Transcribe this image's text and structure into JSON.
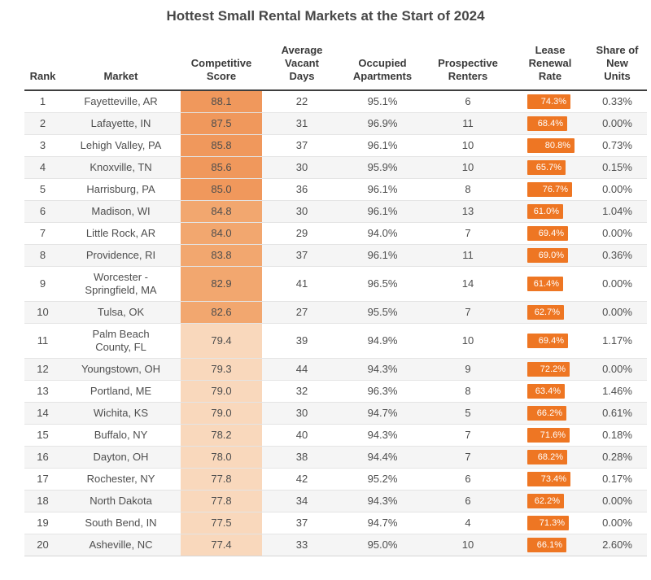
{
  "colors": {
    "badge": "#EE7623",
    "score_high": "#F0985C",
    "score_mid": "#F2A76F",
    "score_low": "#F9D8BC",
    "row_alt": "#F5F5F5",
    "header_border": "#3E3E3E",
    "title_text": "#474747",
    "body_text": "#4E4E4E"
  },
  "chart_data": {
    "type": "table",
    "title": "Hottest Small Rental Markets at the Start of 2024",
    "columns": [
      {
        "label": "Rank"
      },
      {
        "label": "Market"
      },
      {
        "label": "Competitive\nScore"
      },
      {
        "label": "Average\nVacant\nDays"
      },
      {
        "label": "Occupied\nApartments"
      },
      {
        "label": "Prospective\nRenters"
      },
      {
        "label": "Lease\nRenewal\nRate"
      },
      {
        "label": "Share of\nNew\nUnits"
      }
    ],
    "rows": [
      {
        "rank": 1,
        "market": "Fayetteville, AR",
        "score": "88.1",
        "score_bg": "#F0985C",
        "vacant_days": 22,
        "occupied": "95.1%",
        "prospective": 6,
        "lease_renewal": "74.3%",
        "share_new": "0.33%"
      },
      {
        "rank": 2,
        "market": "Lafayette, IN",
        "score": "87.5",
        "score_bg": "#F0985C",
        "vacant_days": 31,
        "occupied": "96.9%",
        "prospective": 11,
        "lease_renewal": "68.4%",
        "share_new": "0.00%"
      },
      {
        "rank": 3,
        "market": "Lehigh Valley, PA",
        "score": "85.8",
        "score_bg": "#F0985C",
        "vacant_days": 37,
        "occupied": "96.1%",
        "prospective": 10,
        "lease_renewal": "80.8%",
        "share_new": "0.73%"
      },
      {
        "rank": 4,
        "market": "Knoxville, TN",
        "score": "85.6",
        "score_bg": "#F0985C",
        "vacant_days": 30,
        "occupied": "95.9%",
        "prospective": 10,
        "lease_renewal": "65.7%",
        "share_new": "0.15%"
      },
      {
        "rank": 5,
        "market": "Harrisburg, PA",
        "score": "85.0",
        "score_bg": "#F0985C",
        "vacant_days": 36,
        "occupied": "96.1%",
        "prospective": 8,
        "lease_renewal": "76.7%",
        "share_new": "0.00%"
      },
      {
        "rank": 6,
        "market": "Madison, WI",
        "score": "84.8",
        "score_bg": "#F2A76F",
        "vacant_days": 30,
        "occupied": "96.1%",
        "prospective": 13,
        "lease_renewal": "61.0%",
        "share_new": "1.04%"
      },
      {
        "rank": 7,
        "market": "Little Rock, AR",
        "score": "84.0",
        "score_bg": "#F2A76F",
        "vacant_days": 29,
        "occupied": "94.0%",
        "prospective": 7,
        "lease_renewal": "69.4%",
        "share_new": "0.00%"
      },
      {
        "rank": 8,
        "market": "Providence, RI",
        "score": "83.8",
        "score_bg": "#F2A76F",
        "vacant_days": 37,
        "occupied": "96.1%",
        "prospective": 11,
        "lease_renewal": "69.0%",
        "share_new": "0.36%"
      },
      {
        "rank": 9,
        "market": "Worcester - Springfield, MA",
        "score": "82.9",
        "score_bg": "#F2A76F",
        "vacant_days": 41,
        "occupied": "96.5%",
        "prospective": 14,
        "lease_renewal": "61.4%",
        "share_new": "0.00%"
      },
      {
        "rank": 10,
        "market": "Tulsa, OK",
        "score": "82.6",
        "score_bg": "#F2A76F",
        "vacant_days": 27,
        "occupied": "95.5%",
        "prospective": 7,
        "lease_renewal": "62.7%",
        "share_new": "0.00%"
      },
      {
        "rank": 11,
        "market": "Palm Beach County, FL",
        "score": "79.4",
        "score_bg": "#F9D8BC",
        "vacant_days": 39,
        "occupied": "94.9%",
        "prospective": 10,
        "lease_renewal": "69.4%",
        "share_new": "1.17%"
      },
      {
        "rank": 12,
        "market": "Youngstown, OH",
        "score": "79.3",
        "score_bg": "#F9D8BC",
        "vacant_days": 44,
        "occupied": "94.3%",
        "prospective": 9,
        "lease_renewal": "72.2%",
        "share_new": "0.00%"
      },
      {
        "rank": 13,
        "market": "Portland, ME",
        "score": "79.0",
        "score_bg": "#F9D8BC",
        "vacant_days": 32,
        "occupied": "96.3%",
        "prospective": 8,
        "lease_renewal": "63.4%",
        "share_new": "1.46%"
      },
      {
        "rank": 14,
        "market": "Wichita, KS",
        "score": "79.0",
        "score_bg": "#F9D8BC",
        "vacant_days": 30,
        "occupied": "94.7%",
        "prospective": 5,
        "lease_renewal": "66.2%",
        "share_new": "0.61%"
      },
      {
        "rank": 15,
        "market": "Buffalo, NY",
        "score": "78.2",
        "score_bg": "#F9D8BC",
        "vacant_days": 40,
        "occupied": "94.3%",
        "prospective": 7,
        "lease_renewal": "71.6%",
        "share_new": "0.18%"
      },
      {
        "rank": 16,
        "market": "Dayton, OH",
        "score": "78.0",
        "score_bg": "#F9D8BC",
        "vacant_days": 38,
        "occupied": "94.4%",
        "prospective": 7,
        "lease_renewal": "68.2%",
        "share_new": "0.28%"
      },
      {
        "rank": 17,
        "market": "Rochester, NY",
        "score": "77.8",
        "score_bg": "#F9D8BC",
        "vacant_days": 42,
        "occupied": "95.2%",
        "prospective": 6,
        "lease_renewal": "73.4%",
        "share_new": "0.17%"
      },
      {
        "rank": 18,
        "market": "North Dakota",
        "score": "77.8",
        "score_bg": "#F9D8BC",
        "vacant_days": 34,
        "occupied": "94.3%",
        "prospective": 6,
        "lease_renewal": "62.2%",
        "share_new": "0.00%"
      },
      {
        "rank": 19,
        "market": "South Bend, IN",
        "score": "77.5",
        "score_bg": "#F9D8BC",
        "vacant_days": 37,
        "occupied": "94.7%",
        "prospective": 4,
        "lease_renewal": "71.3%",
        "share_new": "0.00%"
      },
      {
        "rank": 20,
        "market": "Asheville, NC",
        "score": "77.4",
        "score_bg": "#F9D8BC",
        "vacant_days": 33,
        "occupied": "95.0%",
        "prospective": 10,
        "lease_renewal": "66.1%",
        "share_new": "2.60%"
      }
    ]
  }
}
